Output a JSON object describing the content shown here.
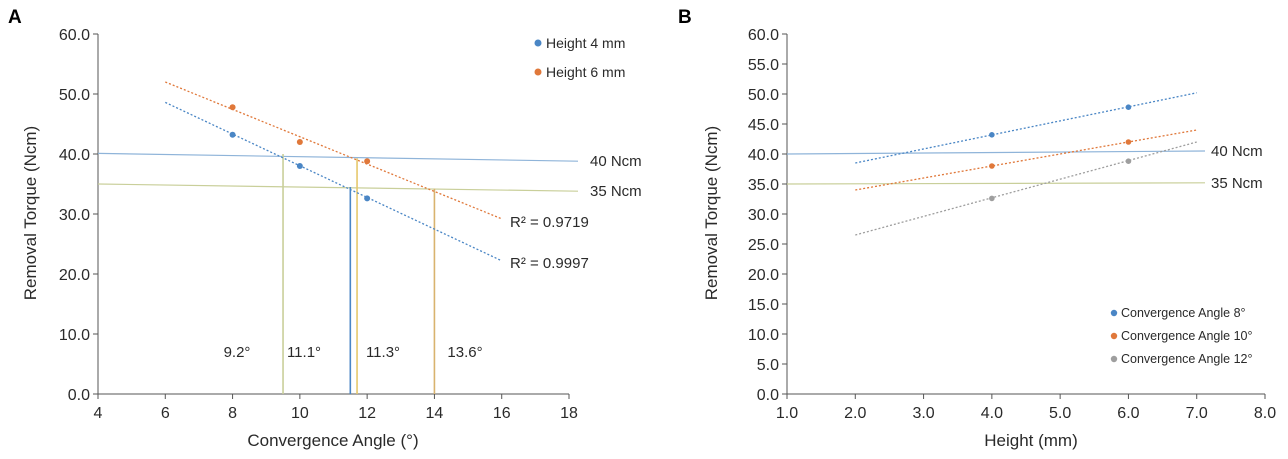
{
  "chart_data": [
    {
      "panel": "A",
      "type": "scatter",
      "xlabel": "Convergence Angle (°)",
      "ylabel": "Removal Torque (Ncm)",
      "xlim": [
        4,
        18
      ],
      "ylim": [
        0,
        60
      ],
      "xticks": [
        "4",
        "6",
        "8",
        "10",
        "12",
        "14",
        "16",
        "18"
      ],
      "yticks": [
        "0.0",
        "10.0",
        "20.0",
        "30.0",
        "40.0",
        "50.0",
        "60.0"
      ],
      "grid": false,
      "legend_position": "top-right",
      "series": [
        {
          "name": "Height 4 mm",
          "color": "#4a86c5",
          "x": [
            8,
            10,
            12
          ],
          "y": [
            43.2,
            38.0,
            32.6
          ],
          "trendline": {
            "x": [
              6,
              16
            ],
            "y": [
              48.6,
              22.2
            ]
          },
          "r_squared_label": "R² = 0.9997"
        },
        {
          "name": "Height 6 mm",
          "color": "#e0783a",
          "x": [
            8,
            10,
            12
          ],
          "y": [
            47.8,
            42.0,
            38.8
          ],
          "trendline": {
            "x": [
              6,
              16
            ],
            "y": [
              52.0,
              29.2
            ]
          },
          "r_squared_label": "R² = 0.9719"
        }
      ],
      "reference_lines": [
        {
          "label": "40 Ncm",
          "y_start": 40.1,
          "y_end": 38.8,
          "color": "#8fb4d9"
        },
        {
          "label": "35 Ncm",
          "y_start": 35.0,
          "y_end": 33.8,
          "color": "#c9cf9a"
        }
      ],
      "threshold_markers": [
        {
          "label": "9.2°",
          "x": 9.5,
          "top": 40.0,
          "color": "#c9cf9a"
        },
        {
          "label": "11.1°",
          "x": 11.5,
          "top": 34.5,
          "color": "#4a86c5"
        },
        {
          "label": "11.3°",
          "x": 11.7,
          "top": 39.3,
          "color": "#e6c86c"
        },
        {
          "label": "13.6°",
          "x": 14.0,
          "top": 34.2,
          "color": "#d9b36e"
        }
      ]
    },
    {
      "panel": "B",
      "type": "scatter",
      "xlabel": "Height (mm)",
      "ylabel": "Removal Torque (Ncm)",
      "xlim": [
        1.0,
        8.0
      ],
      "ylim": [
        0,
        60
      ],
      "xticks": [
        "1.0",
        "2.0",
        "3.0",
        "4.0",
        "5.0",
        "6.0",
        "7.0",
        "8.0"
      ],
      "yticks": [
        "0.0",
        "5.0",
        "10.0",
        "15.0",
        "20.0",
        "25.0",
        "30.0",
        "35.0",
        "40.0",
        "45.0",
        "50.0",
        "55.0",
        "60.0"
      ],
      "grid": false,
      "legend_position": "bottom-right",
      "series": [
        {
          "name": "Convergence Angle 8°",
          "color": "#4a86c5",
          "x": [
            4,
            6
          ],
          "y": [
            43.2,
            47.8
          ],
          "trendline": {
            "x": [
              2,
              7
            ],
            "y": [
              38.5,
              50.2
            ]
          }
        },
        {
          "name": "Convergence Angle 10°",
          "color": "#e0783a",
          "x": [
            4,
            6
          ],
          "y": [
            38.0,
            42.0
          ],
          "trendline": {
            "x": [
              2,
              7
            ],
            "y": [
              34.0,
              44.0
            ]
          }
        },
        {
          "name": "Convergence Angle 12°",
          "color": "#9e9e9e",
          "x": [
            4,
            6
          ],
          "y": [
            32.6,
            38.8
          ],
          "trendline": {
            "x": [
              2,
              7
            ],
            "y": [
              26.5,
              42.0
            ]
          }
        }
      ],
      "reference_lines": [
        {
          "label": "40 Ncm",
          "y_start": 40.0,
          "y_end": 40.5,
          "color": "#8fb4d9"
        },
        {
          "label": "35 Ncm",
          "y_start": 35.0,
          "y_end": 35.2,
          "color": "#c9cf9a"
        }
      ]
    }
  ]
}
